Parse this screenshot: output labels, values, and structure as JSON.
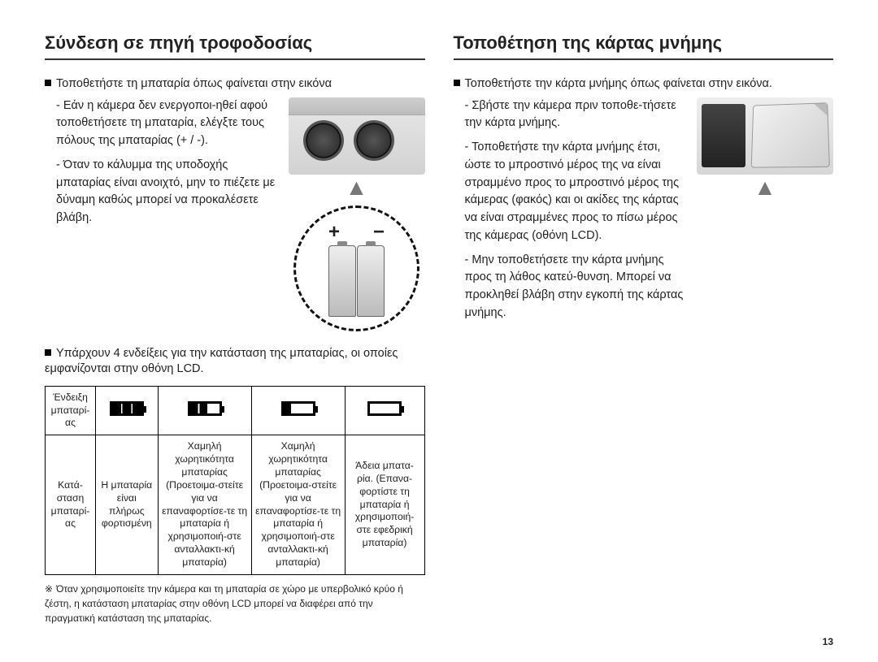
{
  "pageNumber": "13",
  "left": {
    "heading": "Σύνδεση σε πηγή τροφοδοσίας",
    "bullet1": "Τοποθετήστε τη μπαταρία όπως φαίνεται στην εικόνα",
    "sub1a": "Εάν η κάμερα δεν ενεργοποι-ηθεί αφού τοποθετήσετε τη μπαταρία, ελέγξτε τους πόλους της μπαταρίας (+ / -).",
    "sub1b": "Όταν το κάλυμμα της υποδοχής μπαταρίας είναι ανοιχτό, μην το πιέζετε με δύναμη καθώς μπορεί να προκαλέσετε βλάβη.",
    "bullet2": "Υπάρχουν 4 ενδείξεις για την κατάσταση της μπαταρίας, οι οποίες εμφανίζονται στην οθόνη LCD.",
    "table": {
      "rowHeader1": "Ένδειξη μπαταρί-ας",
      "rowHeader2": "Κατά-σταση μπαταρί-ας",
      "status_full": "Η μπαταρία είναι πλήρως φορτισμένη",
      "status_low": "Χαμηλή χωρητικότητα μπαταρίας (Προετοιμα-στείτε για να επαναφορτίσε-τε τη μπαταρία ή χρησιμοποιή-στε ανταλλακτι-κή μπαταρία)",
      "status_low2": "Χαμηλή χωρητικότητα μπαταρίας (Προετοιμα-στείτε για να επαναφορτίσε-τε τη μπαταρία ή χρησιμοποιή-στε ανταλλακτι-κή μπαταρία)",
      "status_empty": "Άδεια μπατα-ρία. (Επανα-φορτίστε τη μπαταρία ή χρησιμοποιή-στε εφεδρική μπαταρία)"
    },
    "footnote": "Όταν χρησιμοποιείτε την κάμερα και τη μπαταρία σε χώρο με υπερβολικό κρύο ή ζέστη, η κατάσταση μπαταρίας στην οθόνη LCD μπορεί να διαφέρει από την πραγματική κατάσταση της μπαταρίας.",
    "footnote_sym": "※",
    "plus": "+",
    "minus": "−",
    "arrow": "▲"
  },
  "right": {
    "heading": "Τοποθέτηση της κάρτας μνήμης",
    "bullet1": "Τοποθετήστε την κάρτα μνήμης όπως φαίνεται στην εικόνα.",
    "sub1": "Σβήστε την κάμερα πριν τοποθε-τήσετε την κάρτα μνήμης.",
    "sub2": "Τοποθετήστε την κάρτα μνήμης έτσι, ώστε το μπροστινό μέρος της να είναι στραμμένο προς το μπροστινό μέρος της κάμερας (φακός) και οι ακίδες της κάρτας να είναι στραμμένες προς το πίσω μέρος της κάμερας (οθόνη LCD).",
    "sub3": "Μην τοποθετήσετε την κάρτα μνήμης προς τη λάθος κατεύ-θυνση. Μπορεί να προκληθεί βλάβη στην εγκοπή της κάρτας μνήμης.",
    "arrow": "▲"
  }
}
